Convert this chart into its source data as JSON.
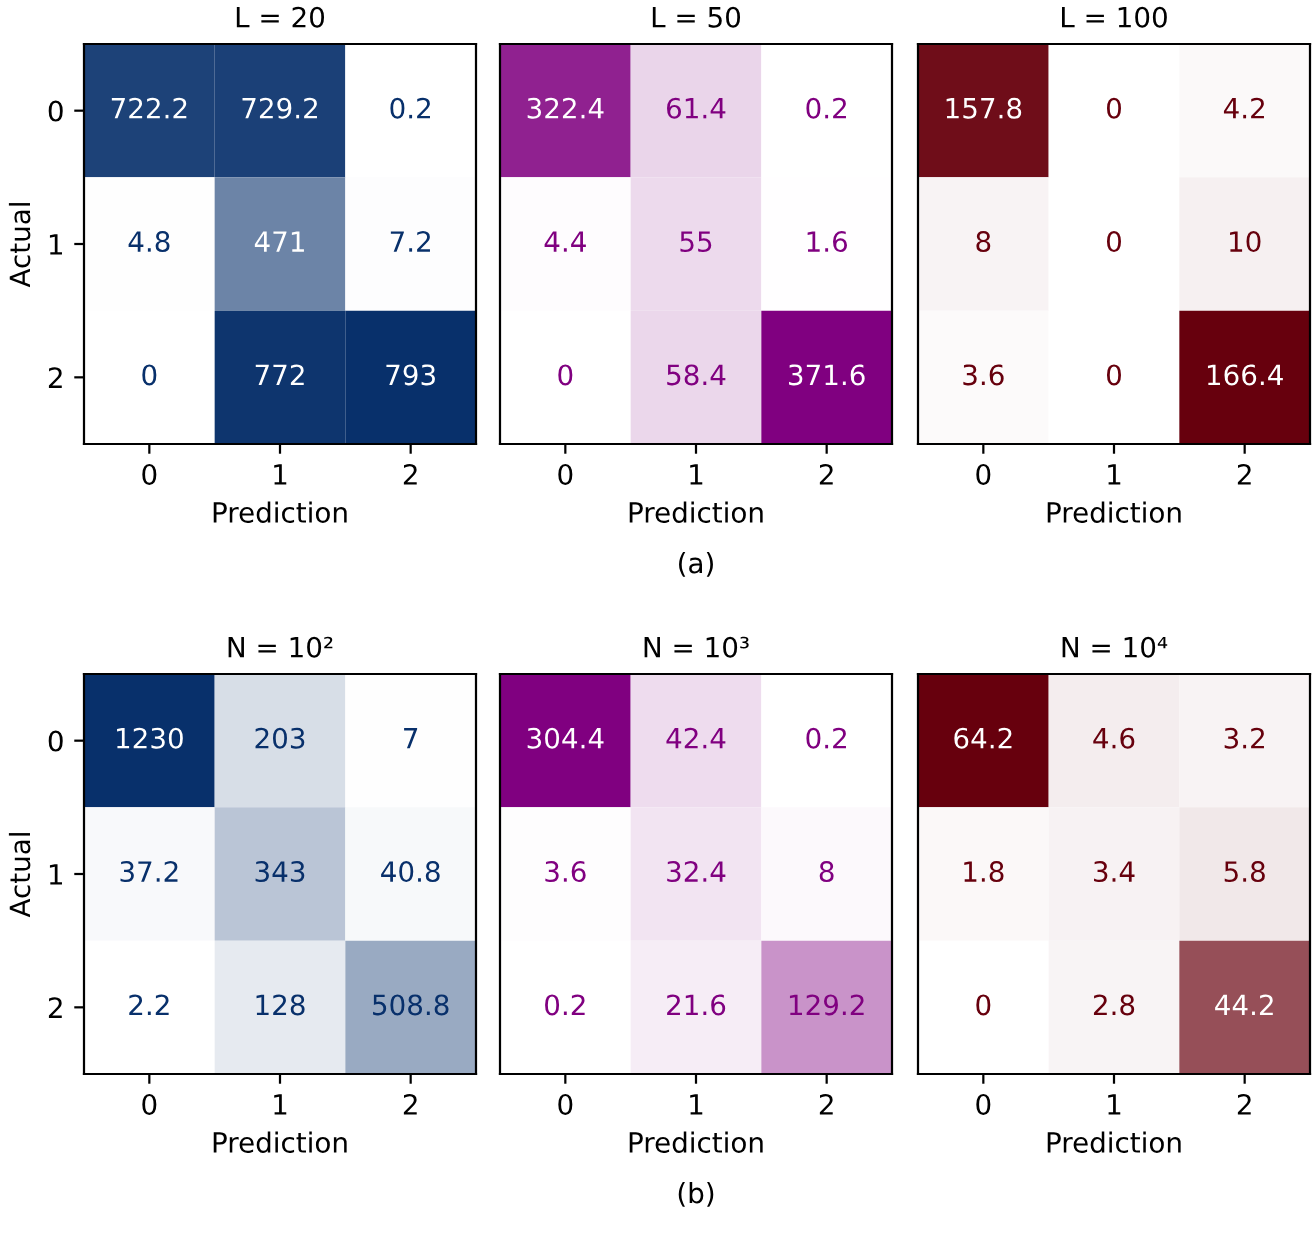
{
  "chart_data": [
    {
      "type": "heatmap",
      "title": "L = 20",
      "xlabel": "Prediction",
      "ylabel": "Actual",
      "categories": [
        "0",
        "1",
        "2"
      ],
      "y_categories": [
        "0",
        "1",
        "2"
      ],
      "color": "#08306b",
      "data_labels": true,
      "cells": [
        [
          722.2,
          729.2,
          0.2
        ],
        [
          4.8,
          471,
          7.2
        ],
        [
          0,
          772,
          793
        ]
      ]
    },
    {
      "type": "heatmap",
      "title": "L = 50",
      "xlabel": "Prediction",
      "categories": [
        "0",
        "1",
        "2"
      ],
      "y_categories": [
        "0",
        "1",
        "2"
      ],
      "color": "#800080",
      "data_labels": true,
      "tick_labels": "x",
      "annotations": [
        "(a)"
      ],
      "cells": [
        [
          322.4,
          61.4,
          0.2
        ],
        [
          4.4,
          55,
          1.6
        ],
        [
          0,
          58.4,
          371.6
        ]
      ]
    },
    {
      "type": "heatmap",
      "title": "L = 100",
      "xlabel": "Prediction",
      "categories": [
        "0",
        "1",
        "2"
      ],
      "y_categories": [
        "0",
        "1",
        "2"
      ],
      "color": "#67000d",
      "data_labels": true,
      "tick_labels": "x",
      "cells": [
        [
          157.8,
          0,
          4.2
        ],
        [
          8,
          0,
          10
        ],
        [
          3.6,
          0,
          166.4
        ]
      ]
    },
    {
      "type": "heatmap",
      "title": "N = 10²",
      "xlabel": "Prediction",
      "ylabel": "Actual",
      "categories": [
        "0",
        "1",
        "2"
      ],
      "y_categories": [
        "0",
        "1",
        "2"
      ],
      "color": "#08306b",
      "data_labels": true,
      "cells": [
        [
          1230,
          203,
          7
        ],
        [
          37.2,
          343,
          40.8
        ],
        [
          2.2,
          128,
          508.8
        ]
      ]
    },
    {
      "type": "heatmap",
      "title": "N = 10³",
      "xlabel": "Prediction",
      "categories": [
        "0",
        "1",
        "2"
      ],
      "y_categories": [
        "0",
        "1",
        "2"
      ],
      "color": "#800080",
      "data_labels": true,
      "tick_labels": "x",
      "annotations": [
        "(b)"
      ],
      "cells": [
        [
          304.4,
          42.4,
          0.2
        ],
        [
          3.6,
          32.4,
          8
        ],
        [
          0.2,
          21.6,
          129.2
        ]
      ]
    },
    {
      "type": "heatmap",
      "title": "N = 10⁴",
      "xlabel": "Prediction",
      "categories": [
        "0",
        "1",
        "2"
      ],
      "y_categories": [
        "0",
        "1",
        "2"
      ],
      "color": "#67000d",
      "data_labels": true,
      "tick_labels": "x",
      "cells": [
        [
          64.2,
          4.6,
          3.2
        ],
        [
          1.8,
          3.4,
          5.8
        ],
        [
          0,
          2.8,
          44.2
        ]
      ]
    }
  ]
}
